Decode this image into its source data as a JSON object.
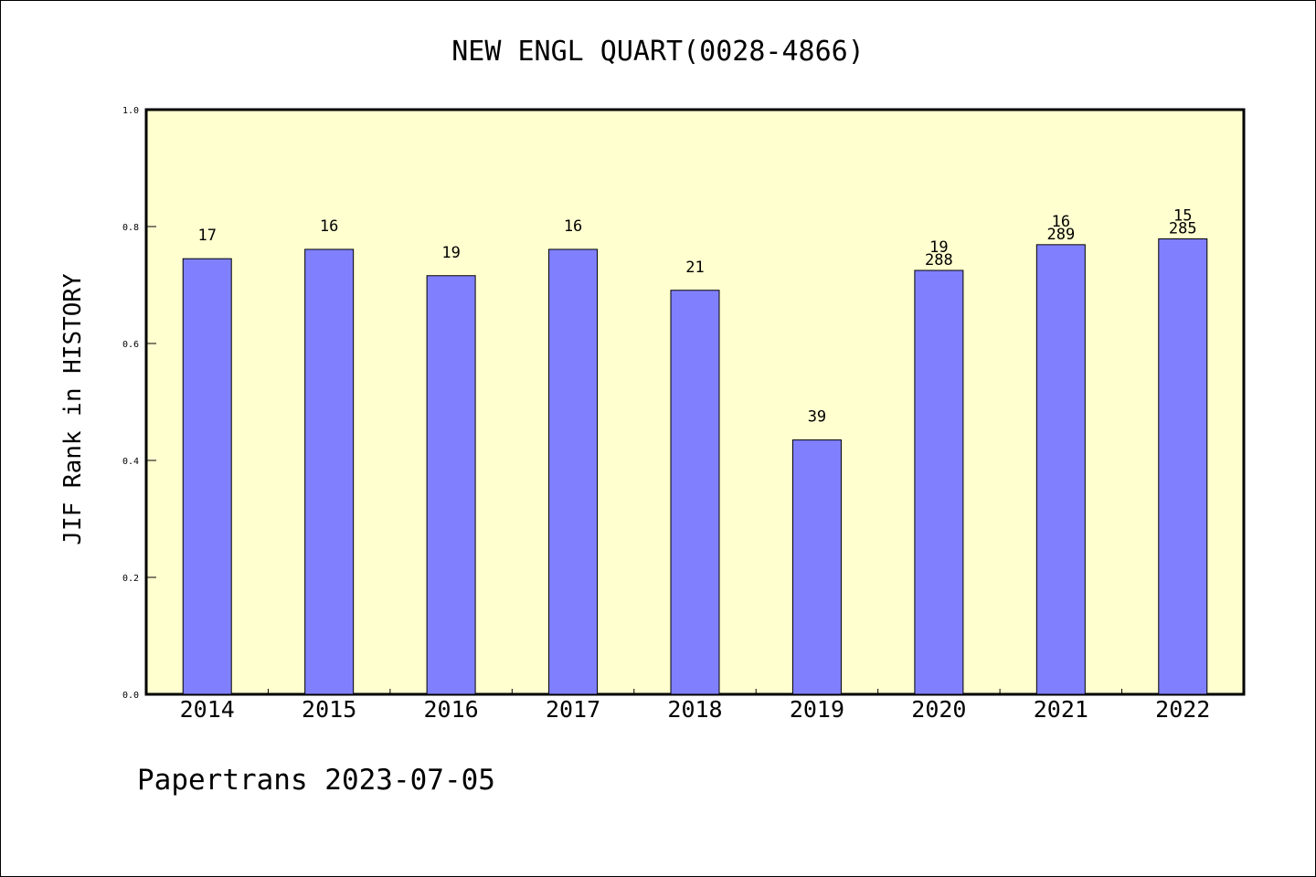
{
  "chart_data": {
    "type": "bar",
    "title": "NEW ENGL QUART(0028-4866)",
    "ylabel": "JIF Rank in HISTORY",
    "xlabel": "",
    "ylim": [
      0,
      1.0
    ],
    "yticks": [
      "0.0",
      "0.2",
      "0.4",
      "0.6",
      "0.8",
      "1.0"
    ],
    "grid": false,
    "background": "#ffffd0",
    "bar_color": "#8080ff",
    "categories": [
      "2014",
      "2015",
      "2016",
      "2017",
      "2018",
      "2019",
      "2020",
      "2021",
      "2022"
    ],
    "values": [
      0.745,
      0.761,
      0.716,
      0.761,
      0.691,
      0.435,
      0.725,
      0.769,
      0.779
    ],
    "rank_labels": [
      "17",
      "16",
      "19",
      "16",
      "21",
      "39",
      "19",
      "16",
      "15"
    ],
    "total_labels": [
      "",
      "",
      "",
      "",
      "",
      "",
      "288",
      "289",
      "285"
    ]
  },
  "footer": {
    "text": "Papertrans 2023-07-05"
  }
}
